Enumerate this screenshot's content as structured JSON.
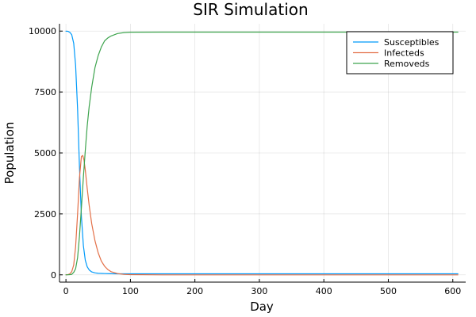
{
  "chart_data": {
    "type": "line",
    "title": "SIR Simulation",
    "xlabel": "Day",
    "ylabel": "Population",
    "xlim": [
      -10,
      620
    ],
    "ylim": [
      -300,
      10300
    ],
    "xticks": [
      0,
      100,
      200,
      300,
      400,
      500,
      600
    ],
    "yticks": [
      0,
      2500,
      5000,
      7500,
      10000
    ],
    "grid": true,
    "legend_position": "top-right",
    "series": [
      {
        "name": "Susceptibles",
        "color": "#009AFA",
        "x": [
          0,
          3,
          6,
          9,
          12,
          15,
          18,
          21,
          24,
          27,
          30,
          33,
          36,
          40,
          45,
          50,
          60,
          70,
          80,
          100,
          150,
          608
        ],
        "values": [
          9998,
          9990,
          9950,
          9850,
          9500,
          8600,
          6800,
          4400,
          2400,
          1200,
          600,
          330,
          200,
          120,
          80,
          60,
          50,
          45,
          42,
          40,
          40,
          40
        ]
      },
      {
        "name": "Infecteds",
        "color": "#E36F47",
        "x": [
          0,
          3,
          6,
          9,
          12,
          15,
          18,
          21,
          24,
          26,
          28,
          30,
          33,
          36,
          40,
          45,
          50,
          55,
          60,
          65,
          70,
          80,
          90,
          100,
          150,
          608
        ],
        "values": [
          2,
          8,
          40,
          130,
          400,
          1150,
          2500,
          4000,
          4850,
          4900,
          4700,
          4300,
          3550,
          2850,
          2100,
          1400,
          900,
          560,
          350,
          215,
          130,
          50,
          20,
          8,
          0,
          0
        ]
      },
      {
        "name": "Removeds",
        "color": "#3EA44E",
        "x": [
          0,
          3,
          6,
          9,
          12,
          15,
          18,
          21,
          24,
          27,
          30,
          33,
          36,
          40,
          45,
          50,
          55,
          60,
          65,
          70,
          80,
          90,
          100,
          150,
          608
        ],
        "values": [
          0,
          2,
          10,
          20,
          100,
          250,
          700,
          1600,
          2750,
          4000,
          5100,
          6100,
          6900,
          7700,
          8500,
          9000,
          9350,
          9600,
          9720,
          9800,
          9900,
          9940,
          9955,
          9960,
          9960
        ]
      }
    ]
  }
}
